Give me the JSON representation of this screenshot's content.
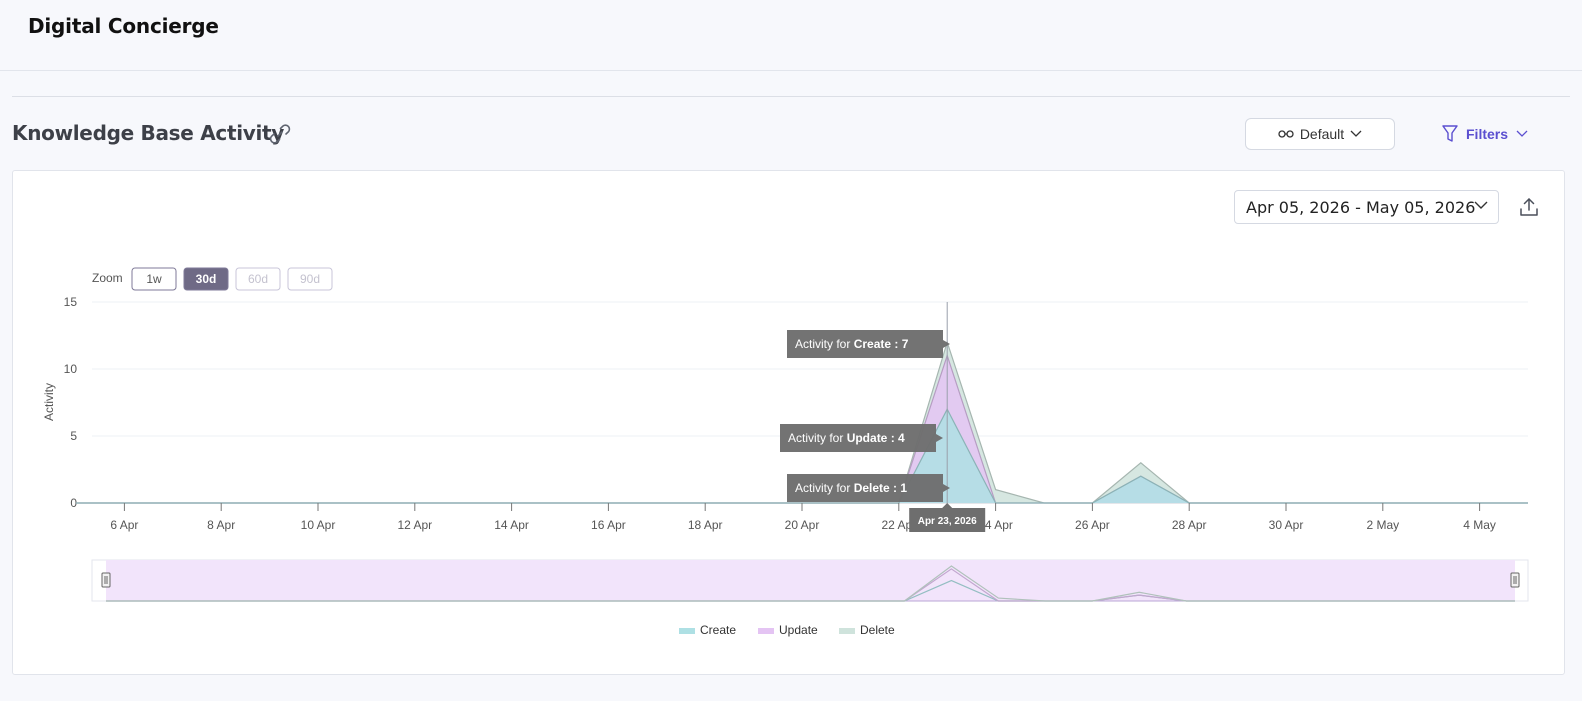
{
  "app": {
    "title": "Digital Concierge"
  },
  "section": {
    "title": "Knowledge Base Activity"
  },
  "toolbar": {
    "view_label": "Default",
    "filters_label": "Filters"
  },
  "date_range": {
    "value": "Apr 05, 2026 - May 05, 2026"
  },
  "zoom": {
    "label": "Zoom",
    "options": [
      "1w",
      "30d",
      "60d",
      "90d"
    ],
    "selected": "30d"
  },
  "icons": {
    "link": "link-icon",
    "view": "glasses-icon",
    "filters": "filter-icon",
    "export": "export-icon",
    "chevron": "chevron-down-icon"
  },
  "colors": {
    "accent": "#5b4fd0",
    "create": "#aee0e4",
    "update": "#e4c4f3",
    "delete": "#cfe3dc"
  },
  "tooltip": {
    "date": "Apr 23, 2026",
    "items": [
      {
        "prefix": "Activity for ",
        "series": "Create",
        "value": "7"
      },
      {
        "prefix": "Activity for ",
        "series": "Update",
        "value": "4"
      },
      {
        "prefix": "Activity for ",
        "series": "Delete",
        "value": "1"
      }
    ]
  },
  "chart_data": {
    "type": "area",
    "title": "",
    "ylabel": "Activity",
    "xlabel": "",
    "ylim": [
      0,
      15
    ],
    "yticks": [
      0,
      5,
      10,
      15
    ],
    "x_range": [
      "2026-04-05",
      "2026-05-05"
    ],
    "xticks": [
      "2026-04-06",
      "2026-04-08",
      "2026-04-10",
      "2026-04-12",
      "2026-04-14",
      "2026-04-16",
      "2026-04-18",
      "2026-04-20",
      "2026-04-22",
      "2026-04-24",
      "2026-04-26",
      "2026-04-28",
      "2026-04-30",
      "2026-05-02",
      "2026-05-04"
    ],
    "xtick_labels": [
      "6 Apr",
      "8 Apr",
      "10 Apr",
      "12 Apr",
      "14 Apr",
      "16 Apr",
      "18 Apr",
      "20 Apr",
      "22 Apr",
      "24 Apr",
      "26 Apr",
      "28 Apr",
      "30 Apr",
      "2 May",
      "4 May"
    ],
    "stacked": true,
    "grid": true,
    "legend_position": "bottom",
    "series": [
      {
        "name": "Create",
        "color": "#aee0e4",
        "points": [
          [
            "2026-04-05",
            0
          ],
          [
            "2026-04-22",
            0
          ],
          [
            "2026-04-23",
            7
          ],
          [
            "2026-04-24",
            0
          ],
          [
            "2026-04-25",
            0
          ],
          [
            "2026-04-26",
            0
          ],
          [
            "2026-04-27",
            2
          ],
          [
            "2026-04-28",
            0
          ],
          [
            "2026-05-05",
            0
          ]
        ]
      },
      {
        "name": "Update",
        "color": "#e4c4f3",
        "points": [
          [
            "2026-04-05",
            0
          ],
          [
            "2026-04-22",
            0
          ],
          [
            "2026-04-23",
            4
          ],
          [
            "2026-04-24",
            0
          ],
          [
            "2026-04-25",
            0
          ],
          [
            "2026-04-26",
            0
          ],
          [
            "2026-04-27",
            0
          ],
          [
            "2026-04-28",
            0
          ],
          [
            "2026-05-05",
            0
          ]
        ]
      },
      {
        "name": "Delete",
        "color": "#cfe3dc",
        "points": [
          [
            "2026-04-05",
            0
          ],
          [
            "2026-04-22",
            0
          ],
          [
            "2026-04-23",
            1
          ],
          [
            "2026-04-24",
            1
          ],
          [
            "2026-04-25",
            0
          ],
          [
            "2026-04-26",
            0
          ],
          [
            "2026-04-27",
            1
          ],
          [
            "2026-04-28",
            0
          ],
          [
            "2026-05-05",
            0
          ]
        ]
      }
    ]
  }
}
